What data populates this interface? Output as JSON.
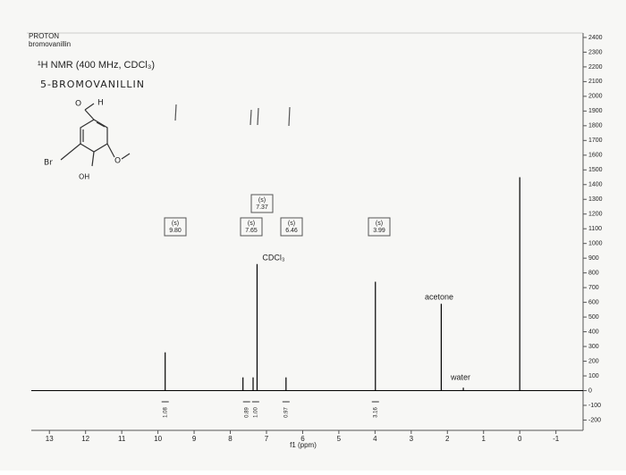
{
  "chart_data": {
    "type": "spectrum",
    "title": "PROTON",
    "subtitle": "bromovanillin",
    "experiment": "¹H NMR (400 MHz, CDCl₃)",
    "handwritten_title": "5-BROMOVANILLIN",
    "x_label": "f1 (ppm)",
    "x": [
      9.8,
      7.65,
      7.37,
      7.26,
      6.46,
      3.99,
      2.17,
      1.56,
      0.0
    ],
    "values": [
      260,
      90,
      90,
      860,
      90,
      740,
      590,
      20,
      1450
    ],
    "color": "#000000",
    "xlim": [
      13.5,
      -1.75
    ],
    "xticks": [
      13,
      12,
      11,
      10,
      9,
      8,
      7,
      6,
      5,
      4,
      3,
      2,
      1,
      0,
      -1
    ],
    "ylim": [
      -270,
      2430
    ],
    "yticks": [
      -200,
      -100,
      0,
      100,
      200,
      300,
      400,
      500,
      600,
      700,
      800,
      900,
      1000,
      1100,
      1200,
      1300,
      1400,
      1500,
      1600,
      1700,
      1800,
      1900,
      2000,
      2100,
      2200,
      2300,
      2400
    ],
    "peak_labels": [
      {
        "multiplicity": "(s)",
        "shift": "9.80"
      },
      {
        "multiplicity": "(s)",
        "shift": "7.65"
      },
      {
        "multiplicity": "(s)",
        "shift": "7.37"
      },
      {
        "multiplicity": "(s)",
        "shift": "6.46"
      },
      {
        "multiplicity": "(s)",
        "shift": "3.99"
      }
    ],
    "integrals": [
      {
        "x": 9.8,
        "label": "1.08"
      },
      {
        "x": 7.55,
        "label": "0.89"
      },
      {
        "x": 7.3,
        "label": "1.00"
      },
      {
        "x": 6.46,
        "label": "0.97"
      },
      {
        "x": 3.99,
        "label": "3.16"
      }
    ],
    "annotations": [
      "CDCl₃",
      "acetone",
      "water"
    ],
    "structure_labels": [
      "O",
      "H",
      "Br",
      "OH",
      "O"
    ]
  }
}
